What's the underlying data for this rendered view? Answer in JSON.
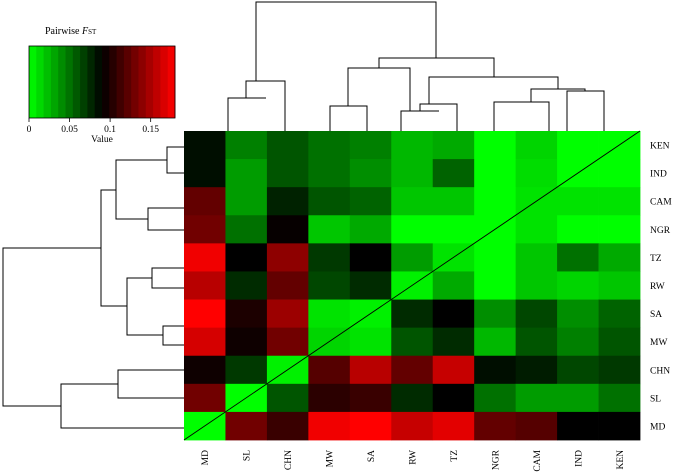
{
  "chart_data": {
    "type": "heatmap",
    "key": {
      "title": "Pairwise ",
      "title_italic": "F",
      "title_sub": "ST",
      "xlabel": "Value",
      "ticks": [
        "0",
        "0.05",
        "0.1",
        "0.15"
      ],
      "tick_values": [
        0,
        0.05,
        0.1,
        0.15
      ],
      "range": [
        0,
        0.18
      ],
      "colors": [
        "#00ff00",
        "#000000",
        "#ff0000"
      ]
    },
    "rows": [
      "KEN",
      "IND",
      "CAM",
      "NGR",
      "TZ",
      "RW",
      "SA",
      "MW",
      "CHN",
      "SL",
      "MD"
    ],
    "columns": [
      "MD",
      "SL",
      "CHN",
      "MW",
      "SA",
      "RW",
      "TZ",
      "NGR",
      "CAM",
      "IND",
      "KEN"
    ],
    "values": [
      [
        0.085,
        0.045,
        0.06,
        0.05,
        0.045,
        0.025,
        0.03,
        0.0,
        0.015,
        0.0,
        0.0
      ],
      [
        0.085,
        0.035,
        0.06,
        0.05,
        0.04,
        0.025,
        0.055,
        0.0,
        0.012,
        0.0,
        0.0
      ],
      [
        0.125,
        0.035,
        0.078,
        0.06,
        0.055,
        0.02,
        0.02,
        0.0,
        0.01,
        0.01,
        0.01
      ],
      [
        0.13,
        0.05,
        0.092,
        0.02,
        0.03,
        0.0,
        0.0,
        0.0,
        0.01,
        0.0,
        0.0
      ],
      [
        0.175,
        0.09,
        0.14,
        0.07,
        0.09,
        0.035,
        0.01,
        0.0,
        0.02,
        0.05,
        0.03
      ],
      [
        0.155,
        0.075,
        0.125,
        0.065,
        0.075,
        0.005,
        0.03,
        0.0,
        0.02,
        0.015,
        0.02
      ],
      [
        0.18,
        0.1,
        0.145,
        0.01,
        0.005,
        0.075,
        0.09,
        0.04,
        0.065,
        0.04,
        0.055
      ],
      [
        0.165,
        0.095,
        0.13,
        0.015,
        0.01,
        0.06,
        0.075,
        0.025,
        0.06,
        0.045,
        0.06
      ],
      [
        0.095,
        0.07,
        0.005,
        0.12,
        0.155,
        0.125,
        0.16,
        0.085,
        0.08,
        0.065,
        0.07
      ],
      [
        0.13,
        0.0,
        0.06,
        0.105,
        0.11,
        0.075,
        0.09,
        0.05,
        0.035,
        0.035,
        0.05
      ],
      [
        0.0,
        0.13,
        0.11,
        0.175,
        0.18,
        0.16,
        0.17,
        0.125,
        0.12,
        0.09,
        0.09
      ]
    ]
  }
}
